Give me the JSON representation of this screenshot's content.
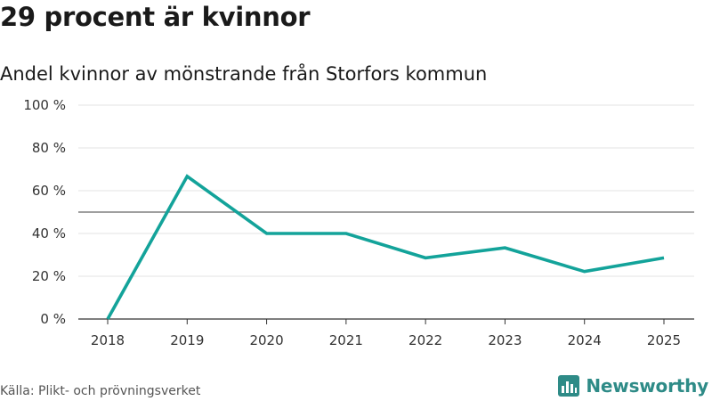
{
  "header": {
    "title": "29 procent är kvinnor",
    "subtitle": "Andel kvinnor av mönstrande från Storfors kommun"
  },
  "footer": {
    "source": "Källa: Plikt- och prövningsverket",
    "brand": "Newsworthy"
  },
  "colors": {
    "line": "#13a39a",
    "reference": "#666666",
    "grid": "#e3e3e3",
    "axis": "#333333",
    "brand": "#2e8b87"
  },
  "chart_data": {
    "type": "line",
    "title": "29 procent är kvinnor",
    "subtitle": "Andel kvinnor av mönstrande från Storfors kommun",
    "xlabel": "",
    "ylabel": "",
    "categories": [
      "2018",
      "2019",
      "2020",
      "2021",
      "2022",
      "2023",
      "2024",
      "2025"
    ],
    "series": [
      {
        "name": "Andel kvinnor",
        "values": [
          0,
          66.7,
          40,
          40,
          28.6,
          33.3,
          22.2,
          28.6
        ]
      }
    ],
    "ylim": [
      0,
      100
    ],
    "yticks": [
      0,
      20,
      40,
      60,
      80,
      100
    ],
    "ytick_labels": [
      "0 %",
      "20 %",
      "40 %",
      "60 %",
      "80 %",
      "100 %"
    ],
    "reference_line": 50,
    "grid": true
  }
}
